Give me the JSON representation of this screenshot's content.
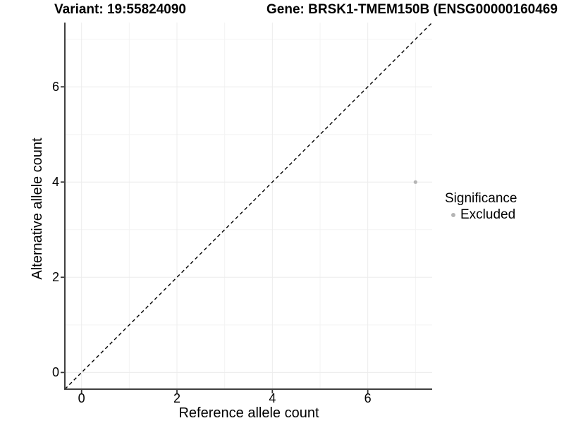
{
  "chart_data": {
    "type": "scatter",
    "title_left": "Variant: 19:55824090",
    "title_right": "Gene: BRSK1-TMEM150B (ENSG00000160469",
    "xlabel": "Reference allele count",
    "ylabel": "Alternative allele count",
    "xlim": [
      -0.35,
      7.35
    ],
    "ylim": [
      -0.35,
      7.35
    ],
    "x_ticks": [
      0,
      2,
      4,
      6
    ],
    "y_ticks": [
      0,
      2,
      4,
      6
    ],
    "x_minor_gridlines": [
      1,
      3,
      5,
      7
    ],
    "y_minor_gridlines": [
      1,
      3,
      5,
      7
    ],
    "grid": true,
    "identity_line": {
      "style": "dashed",
      "from": [
        -0.35,
        -0.35
      ],
      "to": [
        7.35,
        7.35
      ],
      "color": "#000000"
    },
    "series": [
      {
        "name": "Excluded",
        "color": "#b5b5b5",
        "points": [
          {
            "x": 7,
            "y": 4
          }
        ]
      }
    ],
    "legend": {
      "title": "Significance",
      "position": "right",
      "entries": [
        {
          "label": "Excluded",
          "color": "#b5b5b5",
          "marker": "dot"
        }
      ]
    },
    "colors": {
      "background": "#ffffff",
      "grid_major": "#ececec",
      "grid_minor": "#f3f3f3",
      "axis_line": "#404040",
      "tick_mark": "#333333",
      "identity_line": "#000000",
      "point": "#b5b5b5"
    }
  }
}
